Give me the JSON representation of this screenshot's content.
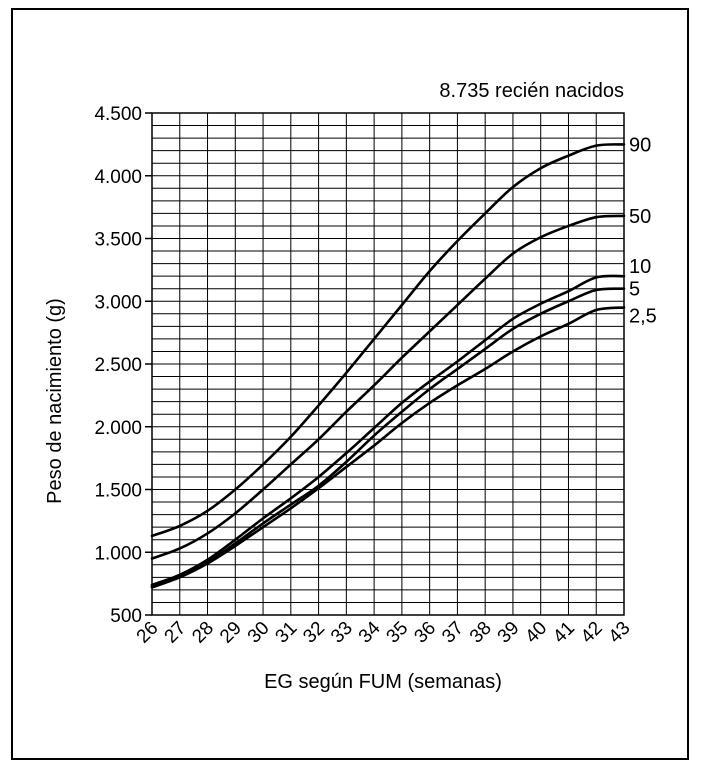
{
  "chart_data": {
    "type": "line",
    "title": "",
    "annotation": "8.735 recién nacidos",
    "xlabel": "EG según FUM (semanas)",
    "ylabel": "Peso de nacimiento (g)",
    "xlim": [
      26,
      43
    ],
    "ylim": [
      500,
      4500
    ],
    "x_ticks": [
      26,
      27,
      28,
      29,
      30,
      31,
      32,
      33,
      34,
      35,
      36,
      37,
      38,
      39,
      40,
      41,
      42,
      43
    ],
    "y_ticks": [
      500,
      1000,
      1500,
      2000,
      2500,
      3000,
      3500,
      4000,
      4500
    ],
    "y_tick_labels": [
      "500",
      "1.000",
      "1.500",
      "2.000",
      "2.500",
      "3.000",
      "3.500",
      "4.000",
      "4.500"
    ],
    "grid": true,
    "x": [
      26,
      27,
      28,
      29,
      30,
      31,
      32,
      33,
      34,
      35,
      36,
      37,
      38,
      39,
      40,
      41,
      42,
      43
    ],
    "series": [
      {
        "name": "90",
        "values": [
          1130,
          1210,
          1330,
          1500,
          1700,
          1920,
          2170,
          2430,
          2700,
          2970,
          3240,
          3480,
          3700,
          3910,
          4060,
          4160,
          4240,
          4250
        ]
      },
      {
        "name": "50",
        "values": [
          950,
          1030,
          1150,
          1310,
          1500,
          1700,
          1900,
          2120,
          2330,
          2550,
          2760,
          2970,
          3180,
          3380,
          3510,
          3600,
          3670,
          3680
        ]
      },
      {
        "name": "10",
        "values": [
          740,
          820,
          940,
          1100,
          1270,
          1430,
          1600,
          1790,
          1990,
          2190,
          2360,
          2520,
          2690,
          2860,
          2980,
          3080,
          3190,
          3200
        ]
      },
      {
        "name": "5",
        "values": [
          730,
          810,
          920,
          1070,
          1230,
          1380,
          1530,
          1720,
          1930,
          2120,
          2300,
          2460,
          2620,
          2780,
          2900,
          3000,
          3090,
          3100
        ]
      },
      {
        "name": "2,5",
        "values": [
          720,
          800,
          910,
          1050,
          1200,
          1350,
          1510,
          1680,
          1850,
          2030,
          2190,
          2330,
          2460,
          2600,
          2720,
          2820,
          2930,
          2950
        ]
      }
    ]
  }
}
